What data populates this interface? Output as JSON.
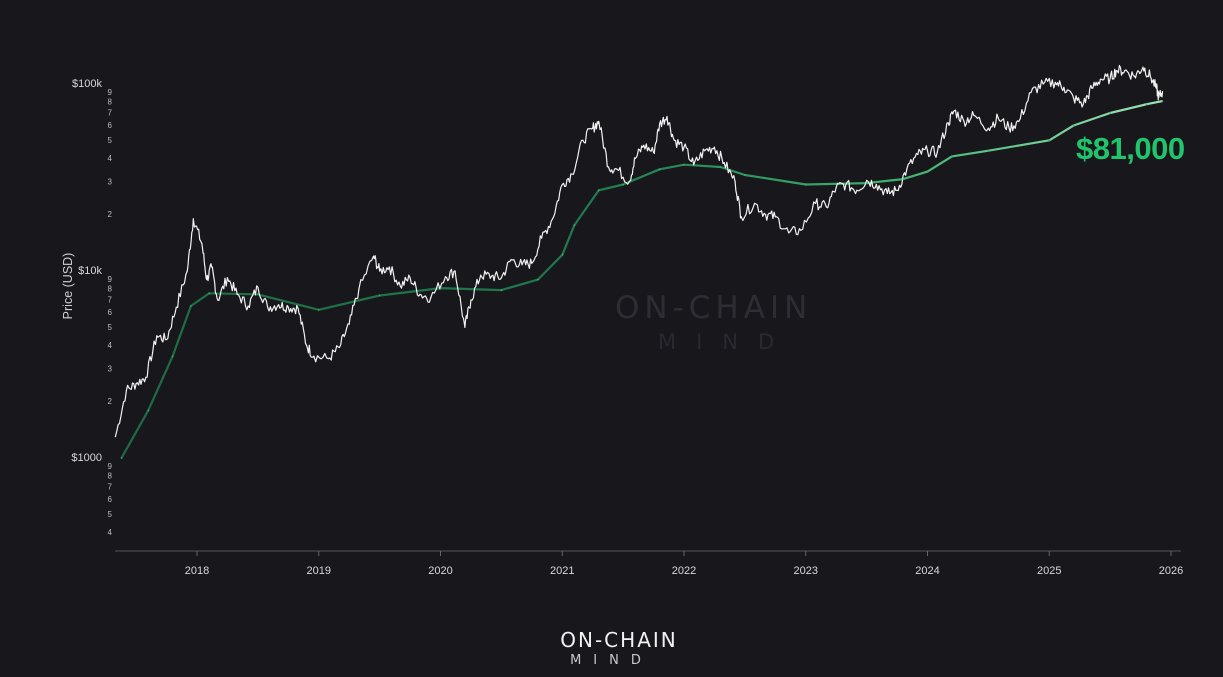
{
  "chart_data": {
    "type": "line",
    "title": "",
    "xlabel": "",
    "ylabel": "Price (USD)",
    "yscale": "log",
    "ylim": [
      320,
      150000
    ],
    "xlim": [
      "2017-05",
      "2026-01"
    ],
    "grid": false,
    "x_ticks": [
      "2018",
      "2019",
      "2020",
      "2021",
      "2022",
      "2023",
      "2024",
      "2025",
      "2026"
    ],
    "y_ticks_major": [
      {
        "value": 100000,
        "label": "$100k"
      },
      {
        "value": 10000,
        "label": "$10k"
      },
      {
        "value": 1000,
        "label": "$1000"
      }
    ],
    "y_ticks_minor_labels": [
      "9",
      "8",
      "7",
      "6",
      "5",
      "4",
      "3",
      "2"
    ],
    "annotation": {
      "text": "$81,000",
      "color": "#21c46b"
    },
    "colors": {
      "price": "#f2f2f2",
      "average_early": "#1d6b44",
      "average_late": "#8fe0ac",
      "background": "#18171c"
    },
    "series": [
      {
        "x": [
          2017.33,
          2017.42,
          2017.5,
          2017.58,
          2017.67,
          2017.75,
          2017.83,
          2017.92,
          2017.97,
          2018.04,
          2018.08,
          2018.12,
          2018.17,
          2018.25,
          2018.33,
          2018.42,
          2018.5,
          2018.58,
          2018.67,
          2018.75,
          2018.83,
          2018.9,
          2018.96,
          2019.08,
          2019.17,
          2019.25,
          2019.33,
          2019.45,
          2019.5,
          2019.58,
          2019.67,
          2019.75,
          2019.83,
          2019.92,
          2020.04,
          2020.12,
          2020.2,
          2020.25,
          2020.33,
          2020.42,
          2020.5,
          2020.58,
          2020.67,
          2020.75,
          2020.83,
          2020.92,
          2021.0,
          2021.08,
          2021.17,
          2021.25,
          2021.3,
          2021.38,
          2021.45,
          2021.55,
          2021.6,
          2021.67,
          2021.75,
          2021.8,
          2021.86,
          2021.92,
          2022.0,
          2022.08,
          2022.17,
          2022.25,
          2022.33,
          2022.42,
          2022.47,
          2022.58,
          2022.67,
          2022.75,
          2022.86,
          2022.96,
          2023.08,
          2023.17,
          2023.25,
          2023.33,
          2023.42,
          2023.5,
          2023.58,
          2023.67,
          2023.75,
          2023.83,
          2023.92,
          2024.0,
          2024.08,
          2024.17,
          2024.22,
          2024.3,
          2024.38,
          2024.5,
          2024.58,
          2024.67,
          2024.75,
          2024.85,
          2024.95,
          2025.05,
          2025.12,
          2025.2,
          2025.28,
          2025.35,
          2025.42,
          2025.5,
          2025.55,
          2025.62,
          2025.7,
          2025.77,
          2025.83,
          2025.88,
          2025.9,
          2025.93
        ],
        "y": [
          1300,
          2300,
          2500,
          2700,
          4500,
          4300,
          6400,
          10000,
          19000,
          14000,
          9000,
          10500,
          7000,
          9200,
          7500,
          6500,
          8200,
          6400,
          6600,
          6400,
          6300,
          4000,
          3500,
          3400,
          3900,
          5200,
          8000,
          12000,
          10000,
          10500,
          8300,
          9200,
          7500,
          7200,
          9300,
          10000,
          5000,
          7000,
          9500,
          9400,
          9200,
          11500,
          10800,
          11000,
          15000,
          19000,
          29000,
          33000,
          50000,
          58000,
          63000,
          36000,
          35000,
          30000,
          40000,
          47000,
          43000,
          61000,
          67000,
          50000,
          46000,
          37000,
          44000,
          46000,
          38000,
          30000,
          19500,
          23000,
          20000,
          19500,
          16000,
          16500,
          23000,
          22000,
          28000,
          29000,
          27000,
          30500,
          29000,
          26000,
          27000,
          35000,
          42000,
          44000,
          43000,
          62000,
          72000,
          63000,
          68000,
          58000,
          66000,
          58000,
          63000,
          90000,
          100000,
          102000,
          96000,
          84000,
          78000,
          95000,
          106000,
          107000,
          118000,
          118000,
          110000,
          123000,
          110000,
          95000,
          85000,
          91000
        ]
      },
      {
        "x": [
          2017.38,
          2017.6,
          2017.8,
          2017.95,
          2018.1,
          2018.5,
          2019.0,
          2019.5,
          2020.0,
          2020.5,
          2020.8,
          2021.0,
          2021.1,
          2021.3,
          2021.5,
          2021.8,
          2022.0,
          2022.3,
          2022.5,
          2023.0,
          2023.5,
          2023.8,
          2024.0,
          2024.2,
          2024.5,
          2025.0,
          2025.2,
          2025.5,
          2025.8,
          2025.93
        ],
        "y": [
          1000,
          1800,
          3500,
          6500,
          7600,
          7500,
          6200,
          7400,
          8100,
          7900,
          9000,
          12200,
          17600,
          27000,
          29000,
          35000,
          37000,
          36000,
          32600,
          29000,
          29500,
          31000,
          34000,
          41000,
          44000,
          50000,
          60000,
          70000,
          78000,
          81000
        ]
      }
    ]
  },
  "watermark": {
    "line1": "ON-CHAIN",
    "line2": "MIND"
  },
  "footer_logo": {
    "line1": "ON-CHAIN",
    "line2": "MIND"
  }
}
